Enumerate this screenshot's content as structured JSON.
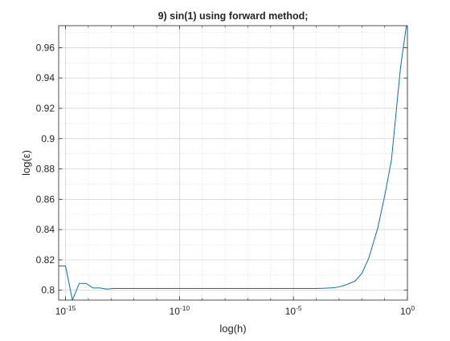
{
  "chart_data": {
    "type": "line",
    "title": "9) sin(1) using forward method;",
    "xlabel": "log(h)",
    "ylabel": "log(ε)",
    "xscale": "log",
    "xlim": [
      5e-16,
      1
    ],
    "ylim": [
      0.7935,
      0.9745
    ],
    "xticks": [
      {
        "value": 1e-15,
        "base": "10",
        "exp": "-15"
      },
      {
        "value": 1e-10,
        "base": "10",
        "exp": "-10"
      },
      {
        "value": 1e-05,
        "base": "10",
        "exp": "-5"
      },
      {
        "value": 1,
        "base": "10",
        "exp": "0"
      }
    ],
    "yticks": [
      {
        "value": 0.8,
        "label": "0.8"
      },
      {
        "value": 0.82,
        "label": "0.82"
      },
      {
        "value": 0.84,
        "label": "0.84"
      },
      {
        "value": 0.86,
        "label": "0.86"
      },
      {
        "value": 0.88,
        "label": "0.88"
      },
      {
        "value": 0.9,
        "label": "0.9"
      },
      {
        "value": 0.92,
        "label": "0.92"
      },
      {
        "value": 0.94,
        "label": "0.94"
      },
      {
        "value": 0.96,
        "label": "0.96"
      }
    ],
    "grid": true,
    "minor_grid": true,
    "line_color": "#0072BD",
    "series": [
      {
        "x": [
          5e-16,
          1e-15,
          2e-15,
          4e-15,
          8e-15,
          1.6e-14,
          3.2e-14,
          6.4e-14,
          1.3e-13,
          1e-12,
          1e-11,
          1e-10,
          1e-09,
          1e-08,
          1e-07,
          1e-06,
          1e-05,
          0.0001,
          0.0002,
          0.0005,
          0.001,
          0.002,
          0.005,
          0.01,
          0.02,
          0.05,
          0.1,
          0.2,
          0.5,
          0.9
        ],
        "y": [
          0.816,
          0.816,
          0.7935,
          0.8045,
          0.8045,
          0.8015,
          0.8015,
          0.8008,
          0.8012,
          0.8012,
          0.8012,
          0.8012,
          0.8012,
          0.8012,
          0.8012,
          0.8012,
          0.8012,
          0.8012,
          0.8013,
          0.8016,
          0.8022,
          0.8035,
          0.806,
          0.811,
          0.821,
          0.841,
          0.862,
          0.886,
          0.947,
          0.9745
        ]
      }
    ]
  }
}
